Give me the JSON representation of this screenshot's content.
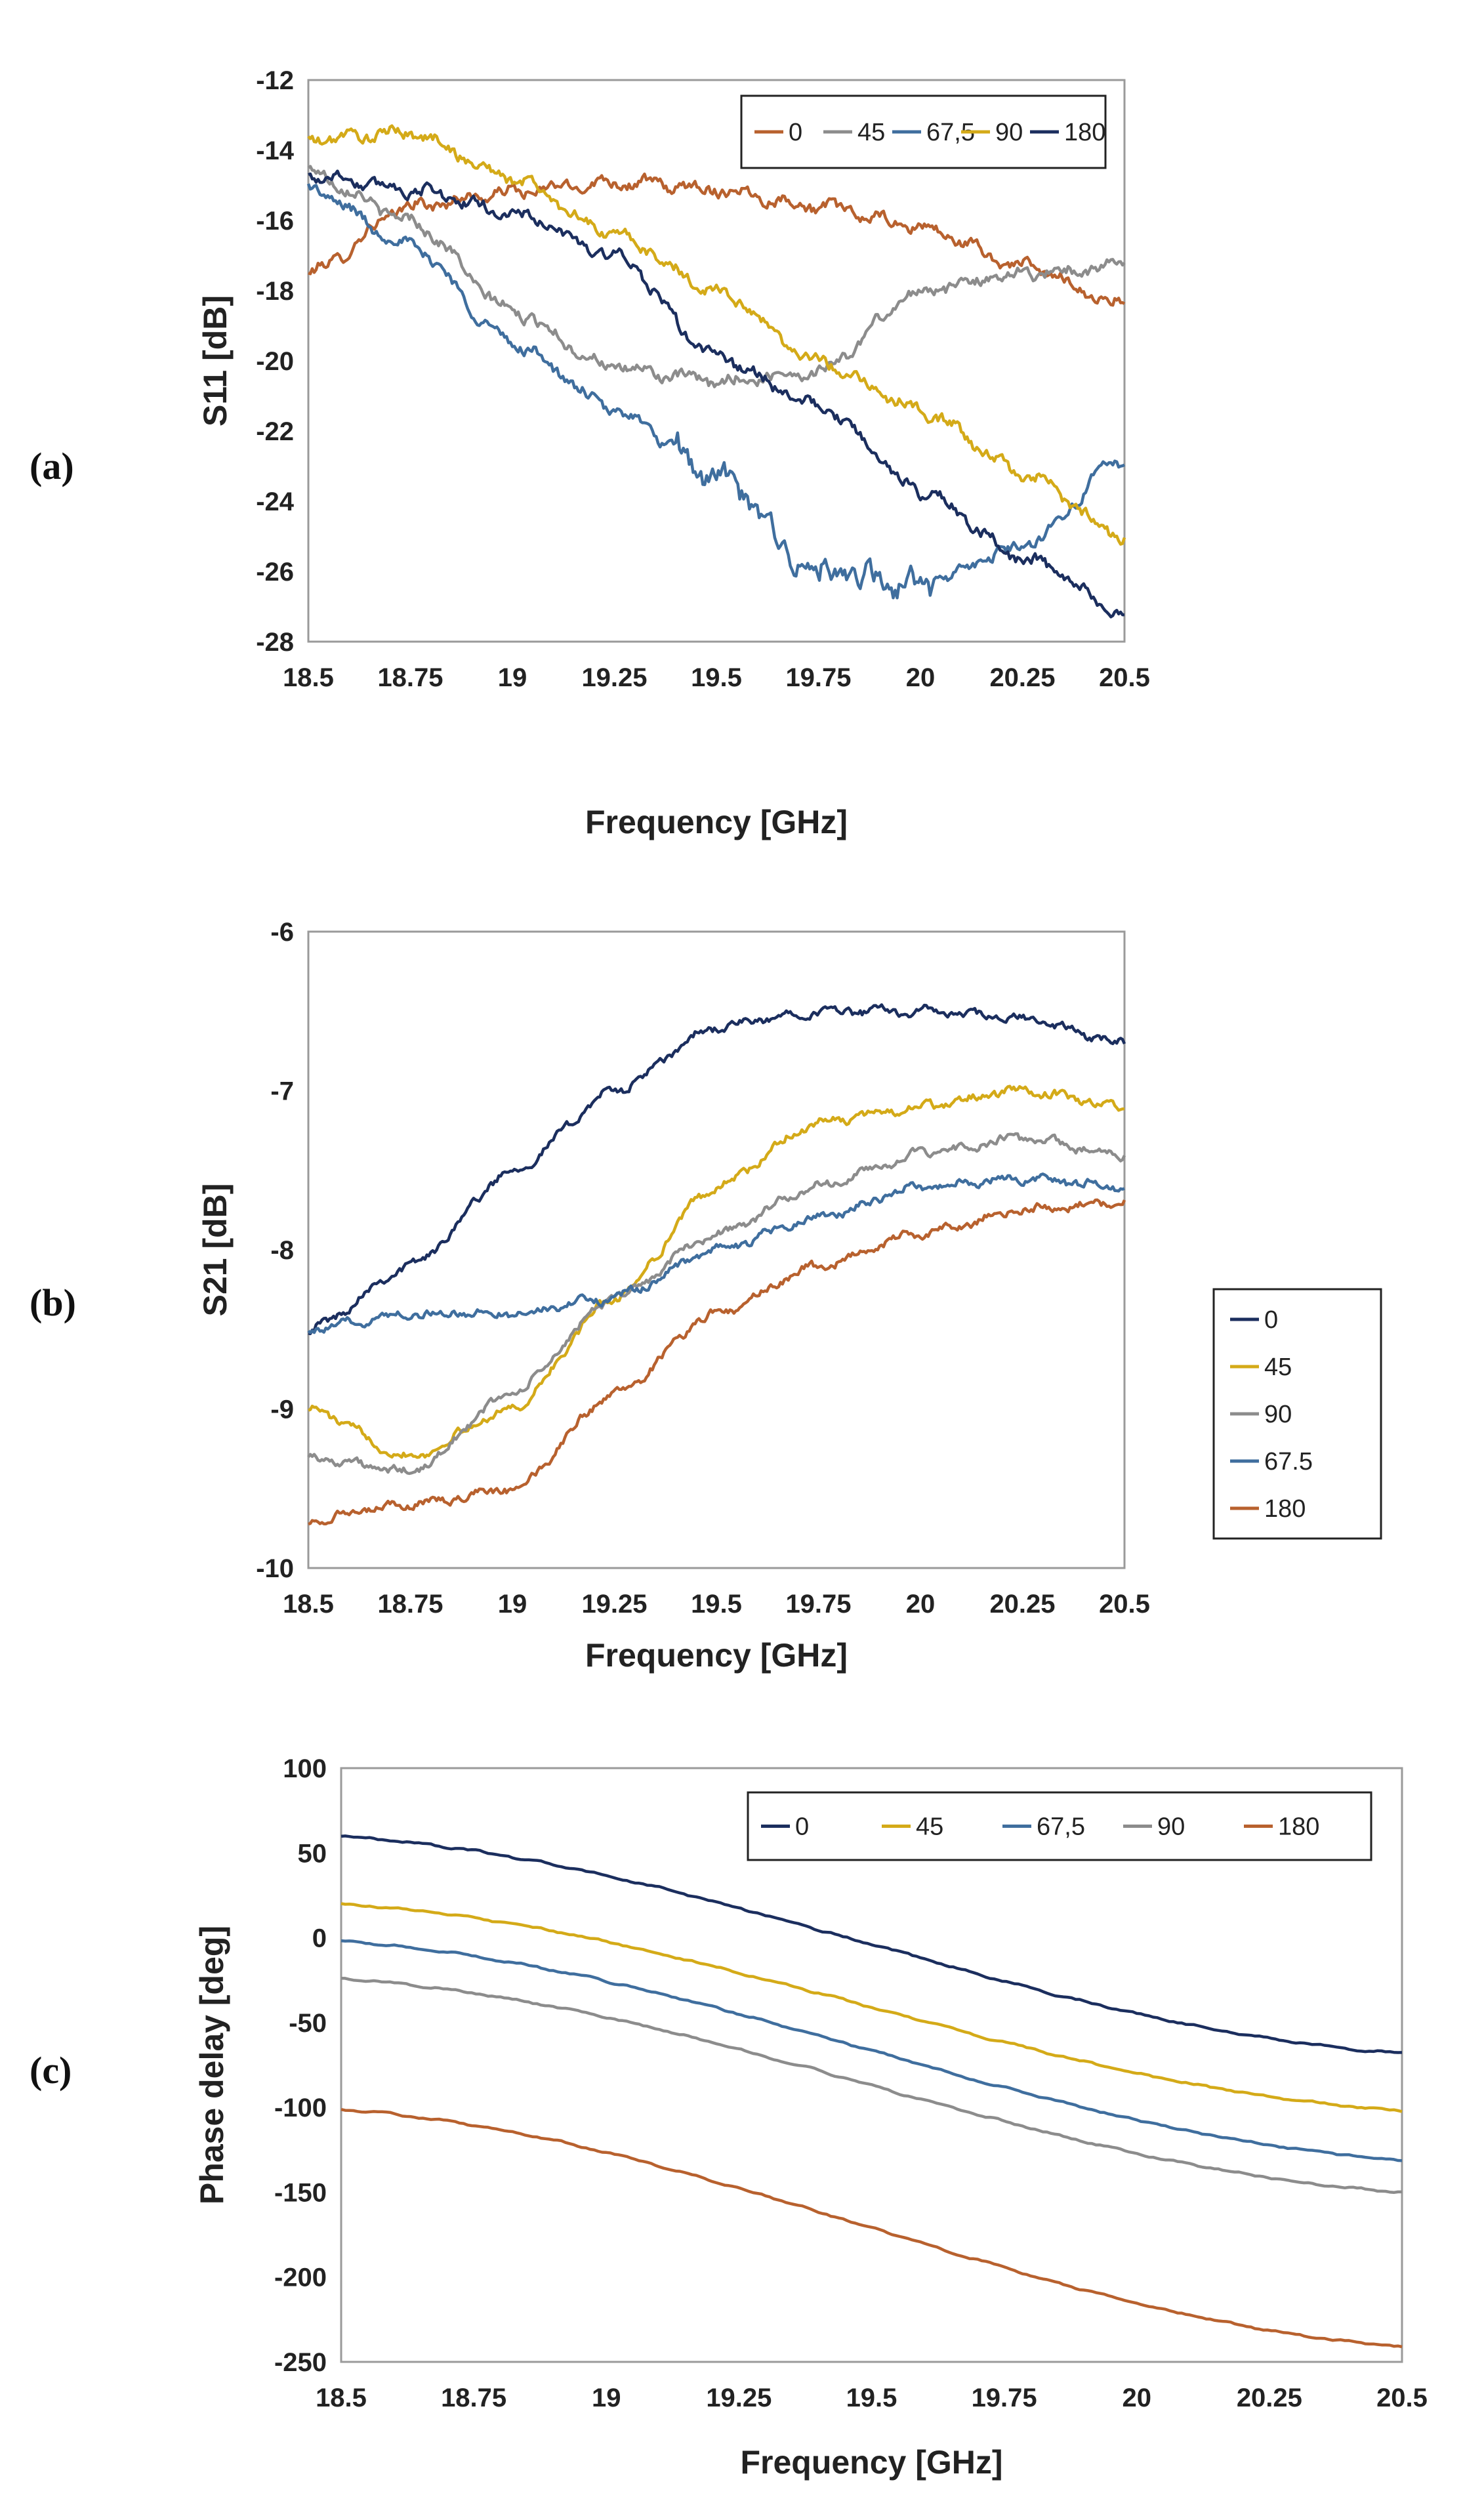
{
  "colors": {
    "orange": "#B8612E",
    "gray": "#8C8C8C",
    "steel": "#3F6E9E",
    "gold": "#D4AA18",
    "navy": "#1B2E5E"
  },
  "chart_data": [
    {
      "panel": "(a)",
      "type": "line",
      "xlabel": "Frequency [GHz]",
      "ylabel": "S11 [dB]",
      "xlim": [
        18.5,
        20.5
      ],
      "ylim": [
        -28,
        -12
      ],
      "x_ticks": [
        "18.5",
        "18.75",
        "19",
        "19.25",
        "19.5",
        "19.75",
        "20",
        "20.25",
        "20.5"
      ],
      "y_ticks": [
        "-12",
        "-14",
        "-16",
        "-18",
        "-20",
        "-22",
        "-24",
        "-26",
        "-28"
      ],
      "legend_position": "top-right",
      "legend_layout": "row",
      "x": [
        18.5,
        18.75,
        19,
        19.25,
        19.5,
        19.75,
        20,
        20.25,
        20.5
      ],
      "series": [
        {
          "name": "0",
          "color": "orange",
          "values": [
            -17.5,
            -15.6,
            -15.2,
            -14.9,
            -15.1,
            -15.6,
            -16.2,
            -17.3,
            -18.4
          ]
        },
        {
          "name": "45",
          "color": "gray",
          "values": [
            -14.6,
            -16.0,
            -18.6,
            -20.2,
            -20.6,
            -20.3,
            -18.0,
            -17.5,
            -17.3
          ]
        },
        {
          "name": "67,5",
          "color": "steel",
          "values": [
            -15.1,
            -16.7,
            -19.5,
            -21.4,
            -23.3,
            -26.1,
            -26.4,
            -25.3,
            -22.8
          ]
        },
        {
          "name": "90",
          "color": "gold",
          "values": [
            -13.7,
            -13.5,
            -14.8,
            -16.4,
            -18.0,
            -20.0,
            -21.4,
            -23.2,
            -25.0
          ]
        },
        {
          "name": "180",
          "color": "navy",
          "values": [
            -14.7,
            -15.1,
            -15.8,
            -17.0,
            -19.9,
            -21.3,
            -23.7,
            -25.6,
            -27.2
          ]
        }
      ]
    },
    {
      "panel": "(b)",
      "type": "line",
      "xlabel": "Frequency [GHz]",
      "ylabel": "S21 [dB]",
      "xlim": [
        18.5,
        20.5
      ],
      "ylim": [
        -10,
        -6
      ],
      "x_ticks": [
        "18.5",
        "18.75",
        "19",
        "19.25",
        "19.5",
        "19.75",
        "20",
        "20.25",
        "20.5"
      ],
      "y_ticks": [
        "-6",
        "-7",
        "-8",
        "-9",
        "-10"
      ],
      "legend_position": "bottom-right",
      "legend_layout": "column",
      "x": [
        18.5,
        18.75,
        19,
        19.25,
        19.5,
        19.75,
        20,
        20.25,
        20.5
      ],
      "series": [
        {
          "name": "0",
          "color": "navy",
          "values": [
            -8.5,
            -8.1,
            -7.5,
            -7.0,
            -6.6,
            -6.5,
            -6.5,
            -6.55,
            -6.7
          ]
        },
        {
          "name": "45",
          "color": "gold",
          "values": [
            -9.0,
            -9.3,
            -9.0,
            -8.3,
            -7.6,
            -7.2,
            -7.1,
            -7.0,
            -7.1
          ]
        },
        {
          "name": "90",
          "color": "gray",
          "values": [
            -9.3,
            -9.4,
            -8.9,
            -8.3,
            -7.9,
            -7.6,
            -7.4,
            -7.3,
            -7.4
          ]
        },
        {
          "name": "67.5",
          "color": "steel",
          "values": [
            -8.5,
            -8.4,
            -8.4,
            -8.3,
            -8.0,
            -7.8,
            -7.6,
            -7.55,
            -7.6
          ]
        },
        {
          "name": "180",
          "color": "orange",
          "values": [
            -9.7,
            -9.6,
            -9.5,
            -8.9,
            -8.4,
            -8.1,
            -7.9,
            -7.75,
            -7.7
          ]
        }
      ]
    },
    {
      "panel": "(c)",
      "type": "line",
      "xlabel": "Frequency [GHz]",
      "ylabel": "Phase delay [deg]",
      "xlim": [
        18.5,
        20.5
      ],
      "ylim": [
        -250,
        100
      ],
      "x_ticks": [
        "18.5",
        "18.75",
        "19",
        "19.25",
        "19.5",
        "19.75",
        "20",
        "20.25",
        "20.5"
      ],
      "y_ticks": [
        "100",
        "50",
        "0",
        "-50",
        "-100",
        "-150",
        "-200",
        "-250"
      ],
      "legend_position": "top-right",
      "legend_layout": "row",
      "x": [
        18.5,
        20.5
      ],
      "series": [
        {
          "name": "0",
          "color": "navy",
          "values": [
            60,
            -68
          ]
        },
        {
          "name": "45",
          "color": "gold",
          "values": [
            20,
            -102
          ]
        },
        {
          "name": "67,5",
          "color": "steel",
          "values": [
            -2,
            -131
          ]
        },
        {
          "name": "90",
          "color": "gray",
          "values": [
            -24,
            -150
          ]
        },
        {
          "name": "180",
          "color": "orange",
          "values": [
            -101,
            -241
          ]
        }
      ]
    }
  ]
}
